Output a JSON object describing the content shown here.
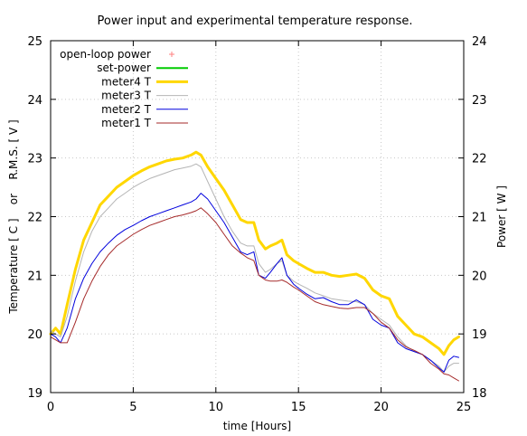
{
  "chart_data": {
    "type": "line",
    "title": "Power input and experimental temperature response.",
    "xlabel": "time [Hours]",
    "ylabel": "Temperature [ C ]    or    R.M.S. [ V ]",
    "y2label": "Power [ W ]",
    "xlim": [
      0,
      25
    ],
    "ylim": [
      19,
      25
    ],
    "y2lim": [
      18,
      24
    ],
    "x_ticks": [
      "0",
      "5",
      "10",
      "15",
      "20",
      "25"
    ],
    "y_ticks": [
      "19",
      "20",
      "21",
      "22",
      "23",
      "24",
      "25"
    ],
    "y2_ticks": [
      "18",
      "19",
      "20",
      "21",
      "22",
      "23",
      "24"
    ],
    "grid": true,
    "legend_position": "top-left",
    "series": [
      {
        "name": "open-loop power",
        "style": "points",
        "color": "#ff8080",
        "axis": "y2",
        "x": [],
        "y": []
      },
      {
        "name": "set-power",
        "style": "line",
        "color": "#00cc00",
        "width": 2,
        "axis": "y2",
        "x": [],
        "y": []
      },
      {
        "name": "meter4 T",
        "style": "line",
        "color": "#ffd700",
        "width": 3,
        "axis": "y",
        "x": [
          0,
          0.3,
          0.6,
          1.0,
          1.5,
          2.0,
          2.5,
          3.0,
          3.5,
          4.0,
          4.5,
          5.0,
          5.5,
          6.0,
          6.5,
          7.0,
          7.5,
          8.0,
          8.5,
          8.8,
          9.1,
          9.5,
          10.0,
          10.5,
          11.0,
          11.5,
          11.9,
          12.3,
          12.6,
          13.0,
          13.3,
          13.7,
          14.0,
          14.3,
          14.7,
          15.0,
          15.5,
          16.0,
          16.5,
          17.0,
          17.5,
          18.0,
          18.5,
          19.0,
          19.5,
          20.0,
          20.5,
          21.0,
          21.5,
          22.0,
          22.5,
          23.0,
          23.5,
          23.8,
          24.1,
          24.4,
          24.7
        ],
        "y": [
          20.0,
          20.1,
          20.0,
          20.5,
          21.1,
          21.6,
          21.9,
          22.2,
          22.35,
          22.5,
          22.6,
          22.7,
          22.78,
          22.85,
          22.9,
          22.95,
          22.98,
          23.0,
          23.05,
          23.1,
          23.05,
          22.85,
          22.65,
          22.45,
          22.2,
          21.95,
          21.9,
          21.9,
          21.6,
          21.45,
          21.5,
          21.55,
          21.6,
          21.35,
          21.25,
          21.2,
          21.12,
          21.05,
          21.05,
          21.0,
          20.98,
          21.0,
          21.02,
          20.95,
          20.75,
          20.65,
          20.6,
          20.3,
          20.15,
          20.0,
          19.95,
          19.85,
          19.75,
          19.65,
          19.8,
          19.9,
          19.95
        ]
      },
      {
        "name": "meter3 T",
        "style": "line",
        "color": "#b4b4b4",
        "width": 1,
        "axis": "y",
        "x": [
          0,
          0.3,
          0.6,
          1.0,
          1.5,
          2.0,
          2.5,
          3.0,
          3.5,
          4.0,
          4.5,
          5.0,
          5.5,
          6.0,
          6.5,
          7.0,
          7.5,
          8.0,
          8.5,
          8.8,
          9.1,
          9.5,
          10.0,
          10.5,
          11.0,
          11.5,
          11.9,
          12.3,
          12.6,
          13.0,
          13.3,
          13.7,
          14.0,
          14.3,
          14.7,
          15.0,
          15.5,
          16.0,
          16.5,
          17.0,
          17.5,
          18.0,
          18.5,
          19.0,
          19.5,
          20.0,
          20.5,
          21.0,
          21.5,
          22.0,
          22.5,
          23.0,
          23.5,
          23.8,
          24.1,
          24.4,
          24.7
        ],
        "y": [
          20.05,
          20.0,
          19.95,
          20.3,
          20.9,
          21.4,
          21.75,
          22.0,
          22.15,
          22.3,
          22.4,
          22.5,
          22.58,
          22.65,
          22.7,
          22.75,
          22.8,
          22.83,
          22.86,
          22.9,
          22.85,
          22.6,
          22.3,
          22.0,
          21.75,
          21.55,
          21.5,
          21.5,
          21.2,
          21.05,
          21.1,
          21.2,
          21.25,
          21.0,
          20.9,
          20.85,
          20.78,
          20.7,
          20.65,
          20.6,
          20.58,
          20.56,
          20.55,
          20.5,
          20.35,
          20.25,
          20.15,
          19.95,
          19.8,
          19.7,
          19.65,
          19.55,
          19.45,
          19.35,
          19.45,
          19.5,
          19.5
        ]
      },
      {
        "name": "meter2 T",
        "style": "line",
        "color": "#0000dd",
        "width": 1,
        "axis": "y",
        "x": [
          0,
          0.3,
          0.6,
          1.0,
          1.5,
          2.0,
          2.5,
          3.0,
          3.5,
          4.0,
          4.5,
          5.0,
          5.5,
          6.0,
          6.5,
          7.0,
          7.5,
          8.0,
          8.5,
          8.8,
          9.1,
          9.5,
          10.0,
          10.5,
          11.0,
          11.5,
          11.9,
          12.3,
          12.6,
          13.0,
          13.3,
          13.7,
          14.0,
          14.3,
          14.7,
          15.0,
          15.5,
          16.0,
          16.5,
          17.0,
          17.5,
          18.0,
          18.5,
          19.0,
          19.5,
          20.0,
          20.5,
          21.0,
          21.5,
          22.0,
          22.5,
          23.0,
          23.5,
          23.8,
          24.1,
          24.4,
          24.7
        ],
        "y": [
          20.0,
          19.95,
          19.85,
          20.1,
          20.6,
          20.95,
          21.2,
          21.4,
          21.55,
          21.68,
          21.78,
          21.85,
          21.93,
          22.0,
          22.05,
          22.1,
          22.15,
          22.2,
          22.25,
          22.3,
          22.4,
          22.3,
          22.1,
          21.9,
          21.65,
          21.4,
          21.35,
          21.4,
          21.0,
          20.95,
          21.05,
          21.2,
          21.3,
          21.0,
          20.85,
          20.78,
          20.68,
          20.6,
          20.62,
          20.55,
          20.5,
          20.5,
          20.58,
          20.5,
          20.25,
          20.15,
          20.1,
          19.85,
          19.75,
          19.7,
          19.65,
          19.55,
          19.42,
          19.35,
          19.55,
          19.62,
          19.6
        ]
      },
      {
        "name": "meter1 T",
        "style": "line",
        "color": "#a52a2a",
        "width": 1,
        "axis": "y",
        "x": [
          0,
          0.3,
          0.6,
          1.0,
          1.5,
          2.0,
          2.5,
          3.0,
          3.5,
          4.0,
          4.5,
          5.0,
          5.5,
          6.0,
          6.5,
          7.0,
          7.5,
          8.0,
          8.5,
          8.8,
          9.1,
          9.5,
          10.0,
          10.5,
          11.0,
          11.5,
          11.9,
          12.3,
          12.6,
          13.0,
          13.3,
          13.7,
          14.0,
          14.3,
          14.7,
          15.0,
          15.5,
          16.0,
          16.5,
          17.0,
          17.5,
          18.0,
          18.5,
          19.0,
          19.5,
          20.0,
          20.5,
          21.0,
          21.5,
          22.0,
          22.5,
          23.0,
          23.5,
          23.8,
          24.1,
          24.4,
          24.7
        ],
        "y": [
          19.95,
          19.9,
          19.85,
          19.85,
          20.2,
          20.6,
          20.9,
          21.15,
          21.35,
          21.5,
          21.6,
          21.7,
          21.78,
          21.85,
          21.9,
          21.95,
          22.0,
          22.03,
          22.07,
          22.1,
          22.15,
          22.05,
          21.9,
          21.7,
          21.5,
          21.38,
          21.3,
          21.25,
          21.0,
          20.92,
          20.9,
          20.9,
          20.92,
          20.88,
          20.8,
          20.75,
          20.65,
          20.55,
          20.5,
          20.47,
          20.44,
          20.43,
          20.45,
          20.45,
          20.35,
          20.2,
          20.1,
          19.9,
          19.78,
          19.72,
          19.65,
          19.5,
          19.4,
          19.32,
          19.3,
          19.25,
          19.2
        ]
      }
    ]
  }
}
